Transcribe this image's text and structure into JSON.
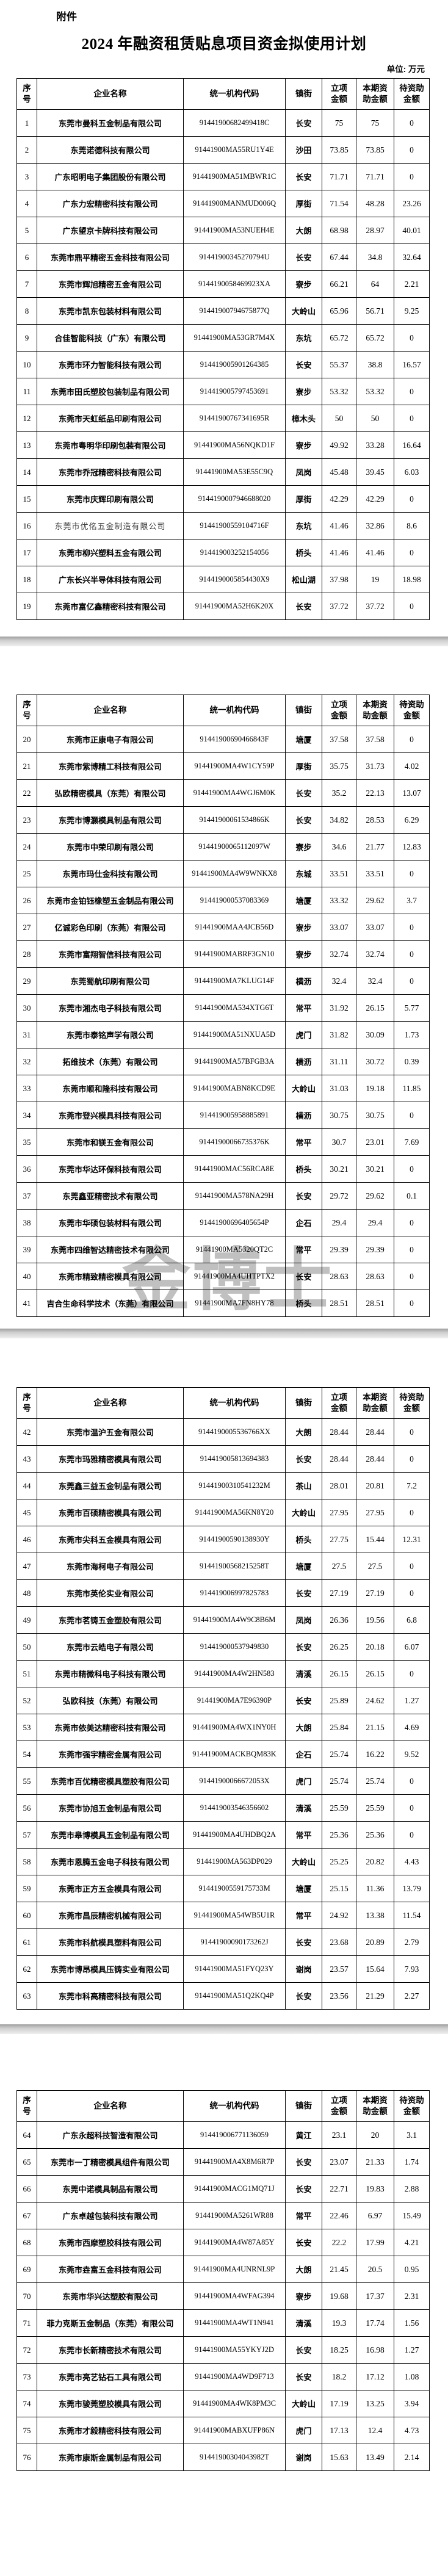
{
  "document": {
    "attachment_label": "附件",
    "title": "2024 年融资租赁贴息项目资金拟使用计划",
    "unit_label": "单位: 万元",
    "watermark_text": "金博士"
  },
  "table": {
    "headers": [
      "序\n号",
      "企业名称",
      "统一机构代码",
      "镇街",
      "立项\n金额",
      "本期资\n助金额",
      "待资助\n金额"
    ],
    "muted_rows": [
      16
    ],
    "pages": [
      {
        "rows": [
          [
            "1",
            "东莞市曼科五金制品有限公司",
            "91441900682499418C",
            "长安",
            "75",
            "75",
            "0"
          ],
          [
            "2",
            "东莞诺德科技有限公司",
            "91441900MA55RU1Y4E",
            "沙田",
            "73.85",
            "73.85",
            "0"
          ],
          [
            "3",
            "广东昭明电子集团股份有限公司",
            "91441900MA51MBWR1C",
            "长安",
            "71.71",
            "71.71",
            "0"
          ],
          [
            "4",
            "广东力宏精密科技有限公司",
            "91441900MANMUD006Q",
            "厚街",
            "71.54",
            "48.28",
            "23.26"
          ],
          [
            "5",
            "广东望京卡牌科技有限公司",
            "91441900MA53NUEH4E",
            "大朗",
            "68.98",
            "28.97",
            "40.01"
          ],
          [
            "6",
            "东莞市鼎平精密五金科技有限公司",
            "91441900345270794U",
            "长安",
            "67.44",
            "34.8",
            "32.64"
          ],
          [
            "7",
            "东莞市辉旭精密五金有限公司",
            "9144190058469923XA",
            "寮步",
            "66.21",
            "64",
            "2.21"
          ],
          [
            "8",
            "东莞市凯东包装材料有限公司",
            "91441900794675877Q",
            "大岭山",
            "65.96",
            "56.71",
            "9.25"
          ],
          [
            "9",
            "合佳智能科技（广东）有限公司",
            "91441900MA53GR7M4X",
            "东坑",
            "65.72",
            "65.72",
            "0"
          ],
          [
            "10",
            "东莞市环力智能科技有限公司",
            "914419005901264385",
            "长安",
            "55.37",
            "38.8",
            "16.57"
          ],
          [
            "11",
            "东莞市田氏塑胶包装制品有限公司",
            "914419005797453691",
            "寮步",
            "53.32",
            "53.32",
            "0"
          ],
          [
            "12",
            "东莞市天虹纸品印刷有限公司",
            "91441900767341695R",
            "樟木头",
            "50",
            "50",
            "0"
          ],
          [
            "13",
            "东莞市粤明华印刷包装有限公司",
            "91441900MA56NQKD1F",
            "寮步",
            "49.92",
            "33.28",
            "16.64"
          ],
          [
            "14",
            "东莞市乔冠精密科技有限公司",
            "91441900MA53E55C9Q",
            "凤岗",
            "45.48",
            "39.45",
            "6.03"
          ],
          [
            "15",
            "东莞市庆辉印刷有限公司",
            "9144190007946688020",
            "厚街",
            "42.29",
            "42.29",
            "0"
          ],
          [
            "16",
            "东莞市优佲五金制造有限公司",
            "91441900559104716F",
            "东坑",
            "41.46",
            "32.86",
            "8.6"
          ],
          [
            "17",
            "东莞市柳兴塑料五金有限公司",
            "914419003252154056",
            "桥头",
            "41.46",
            "41.46",
            "0"
          ],
          [
            "18",
            "广东长兴半导体科技有限公司",
            "9144190005854430X9",
            "松山湖",
            "37.98",
            "19",
            "18.98"
          ],
          [
            "19",
            "东莞市富亿鑫精密科技有限公司",
            "91441900MA52H6K20X",
            "长安",
            "37.72",
            "37.72",
            "0"
          ]
        ]
      },
      {
        "rows": [
          [
            "20",
            "东莞市正康电子有限公司",
            "91441900690466843F",
            "塘厦",
            "37.58",
            "37.58",
            "0"
          ],
          [
            "21",
            "东莞市紫博精工科技有限公司",
            "91441900MA4W1CY59P",
            "厚街",
            "35.75",
            "31.73",
            "4.02"
          ],
          [
            "22",
            "弘欧精密模具（东莞）有限公司",
            "91441900MA4WGJ6M0K",
            "长安",
            "35.2",
            "22.13",
            "13.07"
          ],
          [
            "23",
            "东莞市博灏模具制品有限公司",
            "91441900061534866K",
            "长安",
            "34.82",
            "28.53",
            "6.29"
          ],
          [
            "24",
            "东莞市中荣印刷有限公司",
            "91441900065112097W",
            "寮步",
            "34.6",
            "21.77",
            "12.83"
          ],
          [
            "25",
            "东莞市玛仕金科技有限公司",
            "91441900MA4W9WNKX8",
            "东城",
            "33.51",
            "33.51",
            "0"
          ],
          [
            "26",
            "东莞市金铂钰橡塑五金制品有限公司",
            "914419000537083369",
            "塘厦",
            "33.32",
            "29.62",
            "3.7"
          ],
          [
            "27",
            "亿诚彩色印刷（东莞）有限公司",
            "91441900MAA4JCB56D",
            "寮步",
            "33.07",
            "33.07",
            "0"
          ],
          [
            "28",
            "东莞市富翔智信科技有限公司",
            "91441900MABRF3GN10",
            "寮步",
            "32.74",
            "32.74",
            "0"
          ],
          [
            "29",
            "东莞蜀航印刷有限公司",
            "91441900MA7KLUG14F",
            "横沥",
            "32.4",
            "32.4",
            "0"
          ],
          [
            "30",
            "东莞市湘杰电子科技有限公司",
            "91441900MA534XTG6T",
            "常平",
            "31.92",
            "26.15",
            "5.77"
          ],
          [
            "31",
            "东莞市泰铭声学有限公司",
            "91441900MA51NXUA5D",
            "虎门",
            "31.82",
            "30.09",
            "1.73"
          ],
          [
            "32",
            "拓维技术（东莞）有限公司",
            "91441900MA57BFGB3A",
            "横沥",
            "31.11",
            "30.72",
            "0.39"
          ],
          [
            "33",
            "东莞市顺和隆科技有限公司",
            "91441900MABN8KCD9E",
            "大岭山",
            "31.03",
            "19.18",
            "11.85"
          ],
          [
            "34",
            "东莞市登兴模具科技有限公司",
            "914419005958885891",
            "横沥",
            "30.75",
            "30.75",
            "0"
          ],
          [
            "35",
            "东莞市和镁五金有限公司",
            "91441900066735376K",
            "常平",
            "30.7",
            "23.01",
            "7.69"
          ],
          [
            "36",
            "东莞市华达环保科技有限公司",
            "91441900MAC56RCA8E",
            "桥头",
            "30.21",
            "30.21",
            "0"
          ],
          [
            "37",
            "东莞鑫亚精密技术有限公司",
            "91441900MA578NA29H",
            "长安",
            "29.72",
            "29.62",
            "0.1"
          ],
          [
            "38",
            "东莞市华硕包装材料有限公司",
            "91441900696405654P",
            "企石",
            "29.4",
            "29.4",
            "0"
          ],
          [
            "39",
            "东莞市四维智达精密技术有限公司",
            "91441900MA5320QT2C",
            "常平",
            "29.39",
            "29.39",
            "0"
          ],
          [
            "40",
            "东莞市精致精密模具有限公司",
            "91441900MA4UHTPTX2",
            "长安",
            "28.63",
            "28.63",
            "0"
          ],
          [
            "41",
            "吉合生命科学技术（东莞）有限公司",
            "91441900MA7FN8HY78",
            "桥头",
            "28.51",
            "28.51",
            "0"
          ]
        ]
      },
      {
        "rows": [
          [
            "42",
            "东莞市温沪五金有限公司",
            "9144190005536766XX",
            "大朗",
            "28.44",
            "28.44",
            "0"
          ],
          [
            "43",
            "东莞市玛雅精密模具有限公司",
            "914419005813694383",
            "长安",
            "28.44",
            "28.44",
            "0"
          ],
          [
            "44",
            "东莞鑫三益五金制品有限公司",
            "91441900310541232M",
            "茶山",
            "28.01",
            "20.81",
            "7.2"
          ],
          [
            "45",
            "东莞市百硕精密模具有限公司",
            "91441900MA56KN8Y20",
            "大岭山",
            "27.95",
            "27.95",
            "0"
          ],
          [
            "46",
            "东莞市尖科五金模具有限公司",
            "91441900590138930Y",
            "桥头",
            "27.75",
            "15.44",
            "12.31"
          ],
          [
            "47",
            "东莞市海柯电子有限公司",
            "91441900568215258T",
            "塘厦",
            "27.5",
            "27.5",
            "0"
          ],
          [
            "48",
            "东莞市英伦实业有限公司",
            "914419006997825783",
            "长安",
            "27.19",
            "27.19",
            "0"
          ],
          [
            "49",
            "东莞市茗铸五金塑胶有限公司",
            "91441900MA4W9C8B6M",
            "凤岗",
            "26.36",
            "19.56",
            "6.8"
          ],
          [
            "50",
            "东莞市云皓电子有限公司",
            "914419000537949830",
            "长安",
            "26.25",
            "20.18",
            "6.07"
          ],
          [
            "51",
            "东莞市精微科电子科技有限公司",
            "91441900MA4W2HN583",
            "清溪",
            "26.15",
            "26.15",
            "0"
          ],
          [
            "52",
            "弘欧科技（东莞）有限公司",
            "91441900MA7E96390P",
            "长安",
            "25.89",
            "24.62",
            "1.27"
          ],
          [
            "53",
            "东莞市依美达精密科技有限公司",
            "91441900MA4WX1NY0H",
            "大朗",
            "25.84",
            "21.15",
            "4.69"
          ],
          [
            "54",
            "东莞市强宇精密金属有限公司",
            "91441900MACKBQM83K",
            "企石",
            "25.74",
            "16.22",
            "9.52"
          ],
          [
            "55",
            "东莞市百优精密模具塑胶有限公司",
            "91441900066672053X",
            "虎门",
            "25.74",
            "25.74",
            "0"
          ],
          [
            "56",
            "东莞市协旭五金制品有限公司",
            "914419003546356602",
            "清溪",
            "25.59",
            "25.59",
            "0"
          ],
          [
            "57",
            "东莞市皋博模具五金制品有限公司",
            "91441900MA4UHDBQ2A",
            "常平",
            "25.36",
            "25.36",
            "0"
          ],
          [
            "58",
            "东莞市恩腾五金电子科技有限公司",
            "91441900MA563DP029",
            "大岭山",
            "25.25",
            "20.82",
            "4.43"
          ],
          [
            "59",
            "东莞市正方五金模具有限公司",
            "91441900559175733M",
            "塘厦",
            "25.15",
            "11.36",
            "13.79"
          ],
          [
            "60",
            "东莞市昌辰精密机械有限公司",
            "91441900MA54WB5U1R",
            "常平",
            "24.92",
            "13.38",
            "11.54"
          ],
          [
            "61",
            "东莞市科航模具塑料有限公司",
            "91441900090173262J",
            "长安",
            "23.68",
            "20.89",
            "2.79"
          ],
          [
            "62",
            "东莞市博昂模具压铸实业有限公司",
            "91441900MA51FYQ23Y",
            "谢岗",
            "23.57",
            "15.64",
            "7.93"
          ],
          [
            "63",
            "东莞市科高精密科技有限公司",
            "91441900MA51Q2KQ4P",
            "长安",
            "23.56",
            "21.29",
            "2.27"
          ]
        ]
      },
      {
        "rows": [
          [
            "64",
            "广东永超科技智造有限公司",
            "914419006771136059",
            "黄江",
            "23.1",
            "20",
            "3.1"
          ],
          [
            "65",
            "东莞市一丁精密模具组件有限公司",
            "91441900MA4X8M6R7P",
            "长安",
            "23.07",
            "21.33",
            "1.74"
          ],
          [
            "66",
            "东莞中诺模具制品有限公司",
            "91441900MACG1MQ71J",
            "长安",
            "22.71",
            "19.83",
            "2.88"
          ],
          [
            "67",
            "广东卓越包装科技有限公司",
            "91441900MA5261WR88",
            "常平",
            "22.46",
            "6.97",
            "15.49"
          ],
          [
            "68",
            "东莞市西摩塑胶科技有限公司",
            "91441900MA4W87A85Y",
            "长安",
            "22.2",
            "17.99",
            "4.21"
          ],
          [
            "69",
            "东莞市垚富五金科技有限公司",
            "91441900MA4UNRNL9P",
            "大朗",
            "21.45",
            "20.5",
            "0.95"
          ],
          [
            "70",
            "东莞市华兴达塑胶有限公司",
            "91441900MA4WFAG394",
            "寮步",
            "19.68",
            "17.37",
            "2.31"
          ],
          [
            "71",
            "菲力克斯五金制品（东莞）有限公司",
            "91441900MA4WT1N941",
            "清溪",
            "19.3",
            "17.74",
            "1.56"
          ],
          [
            "72",
            "东莞市长新精密技术有限公司",
            "91441900MA55YKYJ2D",
            "长安",
            "18.25",
            "16.98",
            "1.27"
          ],
          [
            "73",
            "东莞市亮艺钻石工具有限公司",
            "91441900MA4WD9F713",
            "长安",
            "18.2",
            "17.12",
            "1.08"
          ],
          [
            "74",
            "东莞市骏莞塑胶模具有限公司",
            "91441900MA4WK8PM3C",
            "大岭山",
            "17.19",
            "13.25",
            "3.94"
          ],
          [
            "75",
            "东莞市才毅精密科技有限公司",
            "91441900MABXUFP86N",
            "虎门",
            "17.13",
            "12.4",
            "4.73"
          ],
          [
            "76",
            "东莞市康斯金属制品有限公司",
            "91441900304043982T",
            "谢岗",
            "15.63",
            "13.49",
            "2.14"
          ]
        ]
      }
    ]
  }
}
